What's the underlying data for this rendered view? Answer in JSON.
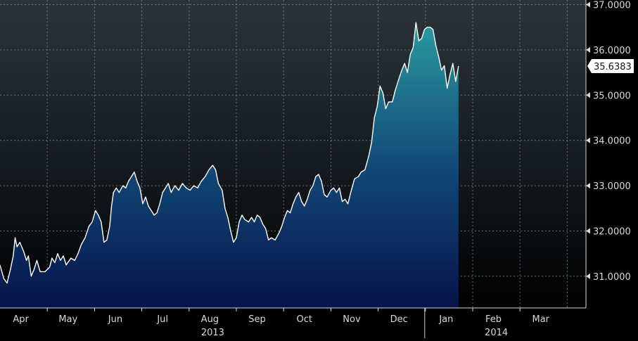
{
  "chart_data": {
    "type": "area",
    "title": "",
    "xlabel": "",
    "ylabel": "",
    "ylim": [
      30.3,
      37.1
    ],
    "y_ticks": [
      "37.0000",
      "36.0000",
      "35.0000",
      "34.0000",
      "33.0000",
      "32.0000",
      "31.0000"
    ],
    "y_tick_values": [
      37,
      36,
      35,
      34,
      33,
      32,
      31
    ],
    "month_labels": [
      "Apr",
      "May",
      "Jun",
      "Jul",
      "Aug",
      "Sep",
      "Oct",
      "Nov",
      "Dec",
      "Jan",
      "Feb",
      "Mar"
    ],
    "year_labels": [
      "2013",
      "2014"
    ],
    "last_value_label": "35.6383",
    "grid": true,
    "x_range": [
      0,
      12.45
    ],
    "series": [
      {
        "values": [
          [
            0.0,
            31.25
          ],
          [
            0.08,
            30.95
          ],
          [
            0.15,
            30.85
          ],
          [
            0.22,
            31.15
          ],
          [
            0.28,
            31.45
          ],
          [
            0.32,
            31.85
          ],
          [
            0.36,
            31.65
          ],
          [
            0.42,
            31.75
          ],
          [
            0.5,
            31.55
          ],
          [
            0.56,
            31.35
          ],
          [
            0.6,
            31.45
          ],
          [
            0.66,
            31.0
          ],
          [
            0.72,
            31.15
          ],
          [
            0.78,
            31.35
          ],
          [
            0.85,
            31.1
          ],
          [
            0.95,
            31.1
          ],
          [
            1.05,
            31.2
          ],
          [
            1.1,
            31.4
          ],
          [
            1.16,
            31.3
          ],
          [
            1.22,
            31.5
          ],
          [
            1.28,
            31.35
          ],
          [
            1.34,
            31.45
          ],
          [
            1.4,
            31.25
          ],
          [
            1.5,
            31.4
          ],
          [
            1.58,
            31.35
          ],
          [
            1.65,
            31.5
          ],
          [
            1.72,
            31.7
          ],
          [
            1.8,
            31.85
          ],
          [
            1.88,
            32.1
          ],
          [
            1.95,
            32.2
          ],
          [
            2.02,
            32.45
          ],
          [
            2.08,
            32.35
          ],
          [
            2.14,
            32.2
          ],
          [
            2.2,
            31.75
          ],
          [
            2.26,
            31.8
          ],
          [
            2.32,
            32.1
          ],
          [
            2.36,
            32.55
          ],
          [
            2.4,
            32.85
          ],
          [
            2.46,
            32.95
          ],
          [
            2.52,
            32.85
          ],
          [
            2.6,
            33.0
          ],
          [
            2.66,
            32.95
          ],
          [
            2.72,
            33.1
          ],
          [
            2.78,
            33.2
          ],
          [
            2.84,
            33.3
          ],
          [
            2.9,
            33.1
          ],
          [
            2.96,
            32.95
          ],
          [
            3.02,
            32.6
          ],
          [
            3.08,
            32.75
          ],
          [
            3.14,
            32.55
          ],
          [
            3.2,
            32.45
          ],
          [
            3.26,
            32.35
          ],
          [
            3.32,
            32.4
          ],
          [
            3.38,
            32.6
          ],
          [
            3.44,
            32.85
          ],
          [
            3.5,
            32.95
          ],
          [
            3.56,
            33.05
          ],
          [
            3.62,
            32.85
          ],
          [
            3.7,
            33.0
          ],
          [
            3.78,
            32.9
          ],
          [
            3.86,
            33.05
          ],
          [
            3.94,
            32.95
          ],
          [
            4.02,
            32.9
          ],
          [
            4.1,
            33.0
          ],
          [
            4.18,
            32.95
          ],
          [
            4.26,
            33.1
          ],
          [
            4.34,
            33.2
          ],
          [
            4.42,
            33.35
          ],
          [
            4.5,
            33.45
          ],
          [
            4.56,
            33.35
          ],
          [
            4.62,
            33.05
          ],
          [
            4.7,
            32.9
          ],
          [
            4.76,
            32.5
          ],
          [
            4.82,
            32.3
          ],
          [
            4.88,
            32.0
          ],
          [
            4.94,
            31.75
          ],
          [
            5.0,
            31.85
          ],
          [
            5.06,
            32.2
          ],
          [
            5.12,
            32.35
          ],
          [
            5.18,
            32.25
          ],
          [
            5.26,
            32.2
          ],
          [
            5.32,
            32.3
          ],
          [
            5.38,
            32.2
          ],
          [
            5.44,
            32.35
          ],
          [
            5.5,
            32.3
          ],
          [
            5.56,
            32.15
          ],
          [
            5.62,
            32.05
          ],
          [
            5.68,
            31.8
          ],
          [
            5.74,
            31.85
          ],
          [
            5.82,
            31.8
          ],
          [
            5.9,
            31.95
          ],
          [
            5.96,
            32.1
          ],
          [
            6.02,
            32.3
          ],
          [
            6.08,
            32.45
          ],
          [
            6.14,
            32.4
          ],
          [
            6.2,
            32.6
          ],
          [
            6.26,
            32.75
          ],
          [
            6.32,
            32.85
          ],
          [
            6.38,
            32.65
          ],
          [
            6.44,
            32.55
          ],
          [
            6.5,
            32.7
          ],
          [
            6.56,
            32.9
          ],
          [
            6.62,
            33.0
          ],
          [
            6.68,
            33.2
          ],
          [
            6.74,
            33.25
          ],
          [
            6.8,
            33.1
          ],
          [
            6.86,
            32.8
          ],
          [
            6.92,
            32.75
          ],
          [
            7.0,
            32.9
          ],
          [
            7.06,
            32.95
          ],
          [
            7.12,
            32.85
          ],
          [
            7.18,
            32.95
          ],
          [
            7.24,
            32.65
          ],
          [
            7.3,
            32.7
          ],
          [
            7.36,
            32.6
          ],
          [
            7.42,
            32.85
          ],
          [
            7.5,
            33.15
          ],
          [
            7.58,
            33.2
          ],
          [
            7.64,
            33.3
          ],
          [
            7.72,
            33.35
          ],
          [
            7.8,
            33.65
          ],
          [
            7.86,
            33.95
          ],
          [
            7.92,
            34.5
          ],
          [
            7.98,
            34.75
          ],
          [
            8.04,
            35.2
          ],
          [
            8.1,
            35.05
          ],
          [
            8.16,
            34.7
          ],
          [
            8.22,
            34.85
          ],
          [
            8.3,
            34.85
          ],
          [
            8.36,
            35.1
          ],
          [
            8.42,
            35.3
          ],
          [
            8.5,
            35.55
          ],
          [
            8.56,
            35.7
          ],
          [
            8.62,
            35.5
          ],
          [
            8.68,
            35.9
          ],
          [
            8.74,
            36.05
          ],
          [
            8.8,
            36.6
          ],
          [
            8.86,
            36.2
          ],
          [
            8.92,
            36.25
          ],
          [
            8.98,
            36.45
          ],
          [
            9.04,
            36.5
          ],
          [
            9.1,
            36.5
          ],
          [
            9.16,
            36.45
          ],
          [
            9.22,
            36.1
          ],
          [
            9.28,
            35.85
          ],
          [
            9.34,
            35.55
          ],
          [
            9.4,
            35.65
          ],
          [
            9.46,
            35.15
          ],
          [
            9.52,
            35.45
          ],
          [
            9.58,
            35.7
          ],
          [
            9.64,
            35.3
          ],
          [
            9.7,
            35.64
          ]
        ]
      }
    ]
  },
  "colors": {
    "line": "#ffffff",
    "area_top": "#2a9aa0",
    "area_bottom": "#06134a",
    "bg_top": "#2a353b",
    "bg_bottom": "#000000",
    "grid": "#8a9096",
    "text": "#d8d8d8",
    "last_label_bg": "#ffffff",
    "last_label_text": "#111111"
  }
}
